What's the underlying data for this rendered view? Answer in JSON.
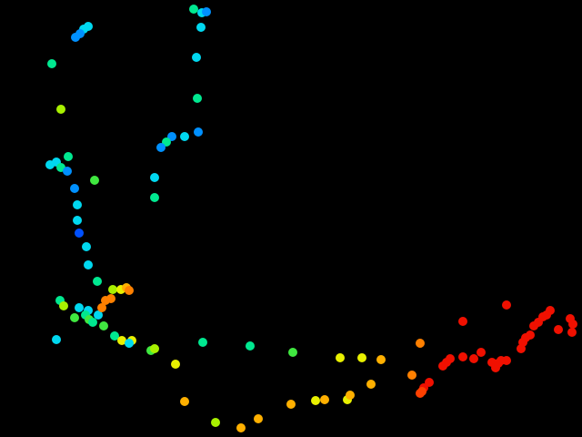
{
  "scene": {
    "background": "#000000",
    "point_colors": {
      "blue": "#0050ff",
      "azure": "#0090ff",
      "cyan": "#00d8f0",
      "spring": "#00e890",
      "green": "#40e840",
      "lime": "#a8f000",
      "yellow": "#e8f000",
      "amber": "#ffb000",
      "orange": "#ff8000",
      "red_orange": "#ff4000",
      "red": "#f01000"
    }
  }
}
